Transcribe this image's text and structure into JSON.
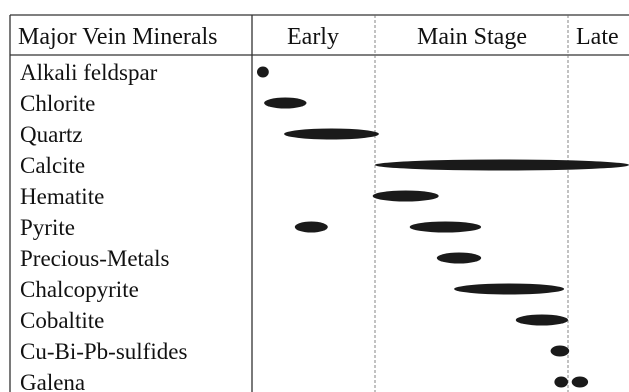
{
  "header": {
    "col_minerals": "Major Vein Minerals",
    "stages": [
      "Early",
      "Main Stage",
      "Late"
    ]
  },
  "colors": {
    "ink": "#1a1a1a",
    "rule": "#333333",
    "divider": "#666666"
  },
  "minerals": [
    {
      "name": "Alkali feldspar",
      "bars": [
        {
          "start": 0.0,
          "end": 0.1
        }
      ]
    },
    {
      "name": "Chlorite",
      "bars": [
        {
          "start": 0.06,
          "end": 0.42
        }
      ]
    },
    {
      "name": "Quartz",
      "bars": [
        {
          "start": 0.23,
          "end": 1.02
        }
      ]
    },
    {
      "name": "Calcite",
      "bars": [
        {
          "start": 1.0,
          "end": 3.0
        }
      ]
    },
    {
      "name": "Hematite",
      "bars": [
        {
          "start": 0.98,
          "end": 1.33
        }
      ]
    },
    {
      "name": "Pyrite",
      "bars": [
        {
          "start": 0.32,
          "end": 0.6
        },
        {
          "start": 1.18,
          "end": 1.55
        }
      ]
    },
    {
      "name": "Precious-Metals",
      "bars": [
        {
          "start": 1.32,
          "end": 1.55
        }
      ]
    },
    {
      "name": "Chalcopyrite",
      "bars": [
        {
          "start": 1.41,
          "end": 1.98
        }
      ]
    },
    {
      "name": "Cobaltite",
      "bars": [
        {
          "start": 1.73,
          "end": 2.0
        }
      ]
    },
    {
      "name": "Cu-Bi-Pb-sulfides",
      "bars": [
        {
          "start": 1.91,
          "end": 2.02
        }
      ]
    },
    {
      "name": "Galena",
      "bars": [
        {
          "start": 1.93,
          "end": 2.0
        },
        {
          "start": 2.06,
          "end": 2.33
        }
      ]
    }
  ]
}
